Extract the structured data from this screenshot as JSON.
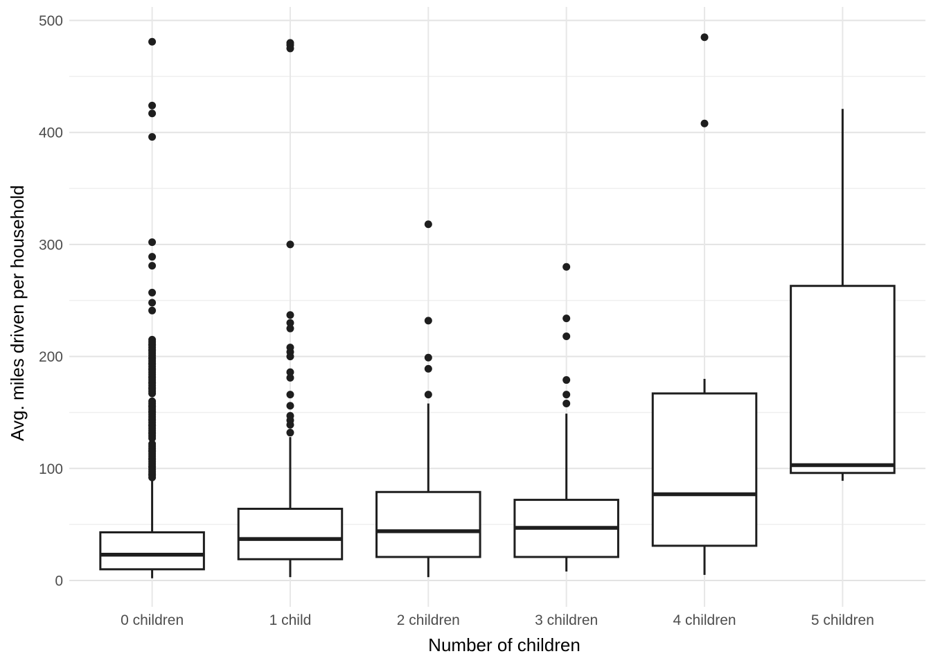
{
  "chart_data": {
    "type": "boxplot",
    "title": "",
    "xlabel": "Number of children",
    "ylabel": "Avg. miles driven per household",
    "categories": [
      "0 children",
      "1 child",
      "2 children",
      "3 children",
      "4 children",
      "5 children"
    ],
    "y_ticks": [
      0,
      100,
      200,
      300,
      400,
      500
    ],
    "y_minor_ticks": [
      50,
      150,
      250,
      350,
      450
    ],
    "ylim": [
      -24,
      512
    ],
    "grid": "horizontal major+minor, vertical major per category",
    "legend_position": "none",
    "boxes": [
      {
        "category": "0 children",
        "whisker_low": 2,
        "q1": 10,
        "median": 23,
        "q3": 43,
        "whisker_high": 91,
        "outliers": [
          481,
          424,
          417,
          396,
          302,
          289,
          281,
          257,
          248,
          241,
          215,
          213,
          211,
          210,
          208,
          206,
          205,
          203,
          201,
          199,
          198,
          196,
          194,
          193,
          191,
          189,
          188,
          186,
          184,
          182,
          181,
          179,
          177,
          176,
          174,
          172,
          171,
          169,
          167,
          160,
          158,
          156,
          155,
          153,
          151,
          150,
          148,
          146,
          144,
          143,
          141,
          139,
          138,
          136,
          134,
          132,
          131,
          129,
          127,
          122,
          120,
          118,
          116,
          115,
          113,
          111,
          109,
          108,
          106,
          104,
          102,
          101,
          99,
          97,
          95,
          94,
          92
        ]
      },
      {
        "category": "1 child",
        "whisker_low": 3,
        "q1": 19,
        "median": 37,
        "q3": 64,
        "whisker_high": 128,
        "outliers": [
          480,
          478,
          475,
          300,
          237,
          230,
          225,
          208,
          204,
          200,
          186,
          181,
          166,
          156,
          147,
          143,
          139,
          132
        ]
      },
      {
        "category": "2 children",
        "whisker_low": 3,
        "q1": 21,
        "median": 44,
        "q3": 79,
        "whisker_high": 158,
        "outliers": [
          318,
          232,
          199,
          189,
          166
        ]
      },
      {
        "category": "3 children",
        "whisker_low": 8,
        "q1": 21,
        "median": 47,
        "q3": 72,
        "whisker_high": 149,
        "outliers": [
          280,
          234,
          218,
          179,
          166,
          158
        ]
      },
      {
        "category": "4 children",
        "whisker_low": 5,
        "q1": 31,
        "median": 77,
        "q3": 167,
        "whisker_high": 180,
        "outliers": [
          485,
          408
        ]
      },
      {
        "category": "5 children",
        "whisker_low": 89,
        "q1": 96,
        "median": 103,
        "q3": 263,
        "whisker_high": 421,
        "outliers": []
      }
    ],
    "colors": {
      "box_stroke": "#1e1e1e",
      "box_fill": "#ffffff",
      "median": "#1e1e1e",
      "whisker": "#1e1e1e",
      "outlier": "#1e1e1e",
      "grid_major": "#e3e3e3",
      "grid_minor": "#efefef",
      "grid_vertical": "#e7e7e7",
      "axis_text": "#4d4d4d",
      "axis_title": "#000000",
      "background": "#ffffff"
    }
  }
}
